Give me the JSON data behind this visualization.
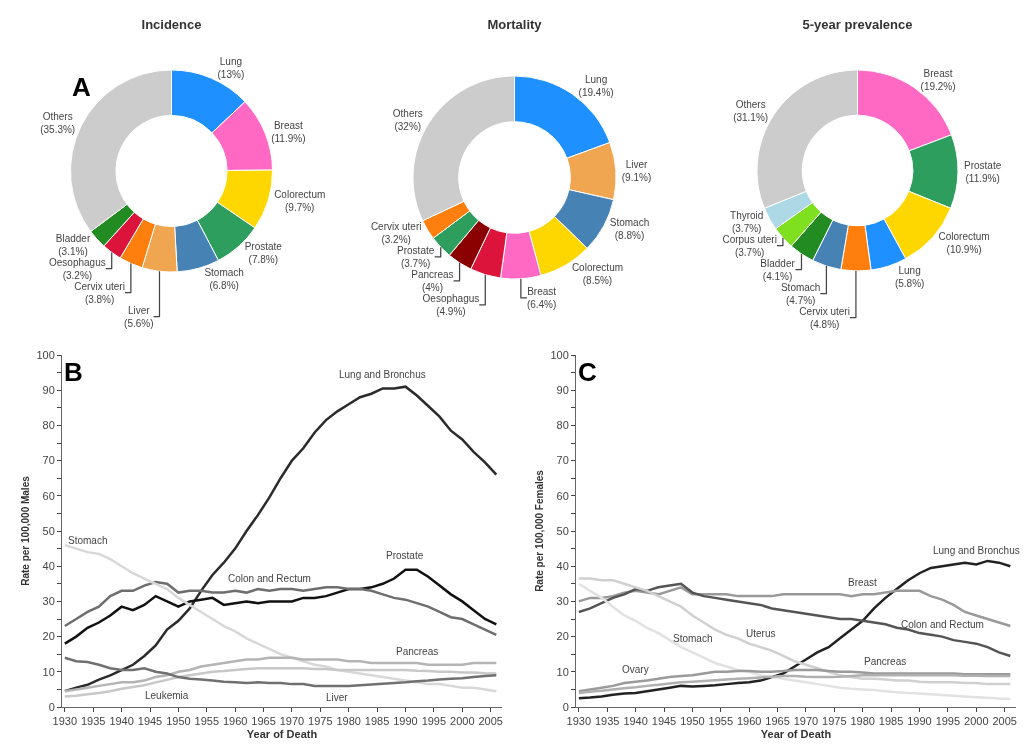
{
  "chart_data": [
    {
      "type": "donut",
      "title": "Incidence",
      "annotations": [
        "A"
      ],
      "categories": [
        "Lung",
        "Breast",
        "Colorectum",
        "Prostate",
        "Stomach",
        "Liver",
        "Cervix uteri",
        "Oesophagus",
        "Bladder",
        "Others"
      ],
      "values": [
        13,
        11.9,
        9.7,
        7.8,
        6.8,
        5.6,
        3.8,
        3.2,
        3.1,
        35.3
      ],
      "value_labels": [
        "(13%)",
        "(11.9%)",
        "(9.7%)",
        "(7.8%)",
        "(6.8%)",
        "(5.6%)",
        "(3.8%)",
        "(3.2%)",
        "(3.1%)",
        "(35.3%)"
      ],
      "colors": [
        "#1e90ff",
        "#ff69c4",
        "#ffd700",
        "#2e9e5e",
        "#4682b4",
        "#f0a550",
        "#ff7f0e",
        "#dc143c",
        "#228b22",
        "#cccccc"
      ]
    },
    {
      "type": "donut",
      "title": "Mortality",
      "categories": [
        "Lung",
        "Liver",
        "Stomach",
        "Colorectum",
        "Breast",
        "Oesophagus",
        "Pancreas",
        "Prostate",
        "Cervix uteri",
        "Others"
      ],
      "values": [
        19.4,
        9.1,
        8.8,
        8.5,
        6.4,
        4.9,
        4,
        3.7,
        3.2,
        32
      ],
      "value_labels": [
        "(19.4%)",
        "(9.1%)",
        "(8.8%)",
        "(8.5%)",
        "(6.4%)",
        "(4.9%)",
        "(4%)",
        "(3.7%)",
        "(3.2%)",
        "(32%)"
      ],
      "colors": [
        "#1e90ff",
        "#f0a550",
        "#4682b4",
        "#ffd700",
        "#ff69c4",
        "#dc143c",
        "#8b0000",
        "#2e9e5e",
        "#ff7f0e",
        "#cccccc"
      ]
    },
    {
      "type": "donut",
      "title": "5-year prevalence",
      "categories": [
        "Breast",
        "Prostate",
        "Colorectum",
        "Lung",
        "Cervix uteri",
        "Stomach",
        "Bladder",
        "Corpus uteri",
        "Thyroid",
        "Others"
      ],
      "values": [
        19.2,
        11.9,
        10.9,
        5.8,
        4.8,
        4.7,
        4.1,
        3.7,
        3.7,
        31.1
      ],
      "value_labels": [
        "(19.2%)",
        "(11.9%)",
        "(10.9%)",
        "(5.8%)",
        "(4.8%)",
        "(4.7%)",
        "(4.1%)",
        "(3.7%)",
        "(3.7%)",
        "(31.1%)"
      ],
      "colors": [
        "#ff69c4",
        "#2e9e5e",
        "#ffd700",
        "#1e90ff",
        "#ff7f0e",
        "#4682b4",
        "#228b22",
        "#7fe01f",
        "#add8e6",
        "#cccccc"
      ]
    },
    {
      "type": "line",
      "annotations": [
        "B"
      ],
      "xlabel": "Year of Death",
      "ylabel": "Rate per 100,000 Males",
      "x": [
        1930,
        1932,
        1934,
        1936,
        1938,
        1940,
        1942,
        1944,
        1946,
        1948,
        1950,
        1952,
        1954,
        1956,
        1958,
        1960,
        1962,
        1964,
        1966,
        1968,
        1970,
        1972,
        1974,
        1976,
        1978,
        1980,
        1982,
        1984,
        1986,
        1988,
        1990,
        1992,
        1994,
        1996,
        1998,
        2000,
        2002,
        2004,
        2006
      ],
      "xlim": [
        1929.5,
        2007
      ],
      "xticks": [
        1930,
        1935,
        1940,
        1945,
        1950,
        1955,
        1960,
        1965,
        1970,
        1975,
        1980,
        1985,
        1990,
        1995,
        2000,
        2005
      ],
      "ylim": [
        0,
        100
      ],
      "yticks": [
        0,
        {
          "value": 5,
          "label": null
        },
        10,
        {
          "value": 15,
          "label": null
        },
        20,
        {
          "value": 25,
          "label": null
        },
        30,
        {
          "value": 35,
          "label": null
        },
        40,
        {
          "value": 45,
          "label": null
        },
        50,
        {
          "value": 55,
          "label": null
        },
        60,
        {
          "value": 65,
          "label": null
        },
        70,
        {
          "value": 75,
          "label": null
        },
        80,
        {
          "value": 85,
          "label": null
        },
        90,
        {
          "value": 95,
          "label": null
        },
        100
      ],
      "series": [
        {
          "name": "Lung and Bronchus",
          "color": "#2b2b2b",
          "values": [
            4.5,
            5.5,
            6.3,
            7.8,
            9,
            10.5,
            12,
            14.5,
            17.5,
            22,
            24.5,
            28,
            33,
            37.5,
            41,
            45,
            50,
            54.5,
            59.5,
            65,
            70,
            73.5,
            78,
            81.5,
            84,
            86,
            88,
            89,
            90.5,
            90.5,
            91,
            88.5,
            85.5,
            82.5,
            78.5,
            76,
            72.5,
            69.5,
            66
          ]
        },
        {
          "name": "Prostate",
          "color": "#111111",
          "values": [
            18,
            20,
            22.5,
            24,
            26,
            28.5,
            27.5,
            29,
            31.5,
            30,
            28.5,
            30,
            30.5,
            31,
            29,
            29.5,
            30,
            29.5,
            30,
            30,
            30,
            31,
            31,
            31.5,
            32.5,
            33.5,
            33.5,
            34,
            35,
            36.5,
            39,
            39,
            37,
            34.5,
            32,
            30,
            27.5,
            25,
            23.5
          ]
        },
        {
          "name": "Colon and Rectum",
          "color": "#6e6e6e",
          "values": [
            23,
            25,
            27,
            28.5,
            31.5,
            33,
            33,
            34.5,
            35.5,
            35,
            32.5,
            33,
            33,
            32.5,
            32.5,
            33,
            32.5,
            33.5,
            33,
            33.5,
            33.5,
            33,
            33.5,
            34,
            34,
            33.5,
            33.5,
            33,
            32,
            31,
            30.5,
            29.5,
            28.5,
            27,
            25.5,
            25,
            23.5,
            22,
            20.5
          ]
        },
        {
          "name": "Stomach",
          "color": "#d8d8d8",
          "values": [
            46,
            45,
            44,
            43.5,
            42,
            40,
            38,
            36.5,
            35,
            33.5,
            31,
            29,
            27,
            25,
            23,
            21.5,
            19.5,
            18,
            16.5,
            15,
            14,
            13,
            12,
            11.5,
            10.5,
            10,
            9.5,
            9,
            8.5,
            8,
            7.5,
            7,
            6.5,
            6.5,
            6,
            5.5,
            5.5,
            5,
            4.5
          ]
        },
        {
          "name": "Pancreas",
          "color": "#b4b4b4",
          "values": [
            4.5,
            5,
            5.5,
            6,
            6.5,
            7,
            7,
            7.5,
            8.5,
            9,
            10,
            10.5,
            11.5,
            12,
            12.5,
            13,
            13.5,
            13.5,
            14,
            14,
            14,
            13.5,
            13.5,
            13.5,
            13.5,
            13,
            13,
            12.5,
            12.5,
            12.5,
            12.5,
            12.5,
            12,
            12,
            12,
            12,
            12.5,
            12.5,
            12.5
          ]
        },
        {
          "name": "Leukemia",
          "color": "#c8c8c8",
          "values": [
            3,
            3.2,
            3.6,
            4,
            4.5,
            5.2,
            5.7,
            6.2,
            7,
            7.7,
            8.5,
            9,
            9.5,
            10,
            10.2,
            10.5,
            10.8,
            11,
            11,
            11,
            11,
            11,
            10.8,
            10.8,
            10.5,
            10.5,
            10.5,
            10.5,
            10.5,
            10.5,
            10.5,
            10.3,
            10.2,
            10,
            10,
            9.8,
            9.8,
            9.6,
            9.5
          ]
        },
        {
          "name": "Liver",
          "color": "#707070",
          "values": [
            14,
            13,
            12.8,
            12,
            11,
            10.5,
            10.5,
            11,
            10,
            9.5,
            8.5,
            8,
            7.8,
            7.5,
            7.2,
            7,
            6.8,
            7,
            6.8,
            6.8,
            6.5,
            6.5,
            6,
            6,
            6,
            6,
            6.2,
            6.4,
            6.6,
            6.8,
            7,
            7.3,
            7.5,
            7.8,
            8,
            8.2,
            8.5,
            8.8,
            9
          ]
        }
      ]
    },
    {
      "type": "line",
      "annotations": [
        "C"
      ],
      "xlabel": "Year of Death",
      "ylabel": "Rate per 100,000 Females",
      "x": [
        1930,
        1932,
        1934,
        1936,
        1938,
        1940,
        1942,
        1944,
        1946,
        1948,
        1950,
        1952,
        1954,
        1956,
        1958,
        1960,
        1962,
        1964,
        1966,
        1968,
        1970,
        1972,
        1974,
        1976,
        1978,
        1980,
        1982,
        1984,
        1986,
        1988,
        1990,
        1992,
        1994,
        1996,
        1998,
        2000,
        2002,
        2004,
        2006
      ],
      "xlim": [
        1929.5,
        2007
      ],
      "xticks": [
        1930,
        1935,
        1940,
        1945,
        1950,
        1955,
        1960,
        1965,
        1970,
        1975,
        1980,
        1985,
        1990,
        1995,
        2000,
        2005
      ],
      "ylim": [
        0,
        100
      ],
      "yticks": [
        0,
        {
          "value": 5,
          "label": null
        },
        10,
        {
          "value": 15,
          "label": null
        },
        20,
        {
          "value": 25,
          "label": null
        },
        30,
        {
          "value": 35,
          "label": null
        },
        40,
        {
          "value": 45,
          "label": null
        },
        50,
        {
          "value": 55,
          "label": null
        },
        60,
        {
          "value": 65,
          "label": null
        },
        70,
        {
          "value": 75,
          "label": null
        },
        80,
        {
          "value": 85,
          "label": null
        },
        90,
        {
          "value": 95,
          "label": null
        },
        100
      ],
      "series": [
        {
          "name": "Lung and Bronchus",
          "color": "#222222",
          "values": [
            2.5,
            2.7,
            3,
            3.5,
            3.8,
            4,
            4.5,
            5,
            5.5,
            6,
            5.8,
            6,
            6.2,
            6.5,
            6.8,
            7,
            7.5,
            8.5,
            9.5,
            11.5,
            13.5,
            15.5,
            17,
            19.5,
            22,
            24.5,
            28,
            31,
            33.5,
            36,
            38,
            39.5,
            40,
            40.5,
            41,
            40.5,
            41.5,
            41,
            40
          ]
        },
        {
          "name": "Breast",
          "color": "#999999",
          "values": [
            30,
            31,
            31,
            31.5,
            32.5,
            33,
            32.5,
            32,
            33,
            34,
            32,
            32,
            32,
            32,
            31.5,
            31.5,
            31.5,
            31.5,
            32,
            32,
            32,
            32,
            32,
            32,
            31.5,
            32,
            32,
            32.5,
            33,
            33,
            33,
            31.5,
            30.5,
            29,
            27,
            26,
            25,
            24,
            23
          ]
        },
        {
          "name": "Colon and Rectum",
          "color": "#555555",
          "values": [
            27,
            28,
            29.5,
            31,
            32,
            33.5,
            33,
            34,
            34.5,
            35,
            32.5,
            31.5,
            31,
            30.5,
            30,
            29.5,
            29,
            28,
            27.5,
            27,
            26.5,
            26,
            25.5,
            25,
            25,
            24.5,
            24,
            23.5,
            22.5,
            22,
            21,
            20.5,
            20,
            19,
            18.5,
            18,
            17,
            15.5,
            14.5
          ]
        },
        {
          "name": "Uterus",
          "color": "#d0d0d0",
          "values": [
            36.5,
            36.5,
            36,
            36,
            35,
            34,
            33,
            31.5,
            30,
            28.5,
            26,
            24,
            22,
            20.5,
            19.5,
            18,
            17,
            16,
            14.5,
            13,
            12,
            11,
            10,
            9,
            8.5,
            8,
            8,
            7.8,
            7.5,
            7.5,
            7.2,
            7,
            7,
            7,
            6.8,
            6.8,
            6.5,
            6.5,
            6.5
          ]
        },
        {
          "name": "Stomach",
          "color": "#e2e2e2",
          "values": [
            35,
            33,
            31,
            28.5,
            26,
            24.5,
            22.5,
            21,
            19,
            17,
            15.5,
            14,
            12.5,
            11.5,
            10.5,
            10,
            9,
            8.5,
            8,
            7.5,
            7,
            6.5,
            6,
            5.5,
            5.2,
            5,
            4.8,
            4.5,
            4.2,
            4,
            3.8,
            3.6,
            3.4,
            3.2,
            3,
            2.8,
            2.6,
            2.4,
            2.3
          ]
        },
        {
          "name": "Ovary",
          "color": "#9a9a9a",
          "values": [
            4.5,
            5,
            5.5,
            6,
            6.8,
            7.2,
            7.5,
            8,
            8.5,
            8.8,
            9,
            9.5,
            10,
            10,
            10.2,
            10.2,
            10,
            10,
            10.2,
            10.5,
            10.5,
            10.5,
            10.2,
            10,
            10,
            9.8,
            9.5,
            9.5,
            9.5,
            9.5,
            9.5,
            9.5,
            9.5,
            9.5,
            9.3,
            9.3,
            9.3,
            9.3,
            9.3
          ]
        },
        {
          "name": "Pancreas",
          "color": "#b0b0b0",
          "values": [
            4,
            4.3,
            4.6,
            5,
            5.3,
            5.6,
            6,
            6.3,
            6.7,
            7,
            7.2,
            7.4,
            7.6,
            7.8,
            8,
            8.2,
            8.4,
            8.6,
            8.8,
            8.8,
            8.6,
            8.5,
            8.5,
            8.6,
            8.8,
            9,
            9,
            9,
            9,
            9,
            9,
            9,
            9,
            9,
            8.9,
            8.9,
            8.8,
            8.8,
            8.8
          ]
        }
      ]
    }
  ]
}
